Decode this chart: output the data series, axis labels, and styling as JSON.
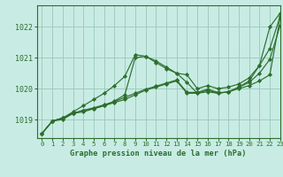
{
  "title": "Graphe pression niveau de la mer (hPa)",
  "background_color": "#c8ece4",
  "grid_color": "#a0ccbf",
  "line_color": "#2d6e2d",
  "xlim": [
    -0.5,
    23
  ],
  "ylim": [
    1018.4,
    1022.7
  ],
  "yticks": [
    1019,
    1020,
    1021,
    1022
  ],
  "xticks": [
    0,
    1,
    2,
    3,
    4,
    5,
    6,
    7,
    8,
    9,
    10,
    11,
    12,
    13,
    14,
    15,
    16,
    17,
    18,
    19,
    20,
    21,
    22,
    23
  ],
  "series": [
    [
      1018.55,
      1018.95,
      1019.0,
      1019.2,
      1019.25,
      1019.35,
      1019.45,
      1019.55,
      1019.65,
      1019.8,
      1019.95,
      1020.05,
      1020.15,
      1020.25,
      1019.85,
      1019.85,
      1019.95,
      1019.85,
      1019.9,
      1020.0,
      1020.1,
      1020.25,
      1020.45,
      1022.3
    ],
    [
      1018.55,
      1018.95,
      1019.05,
      1019.25,
      1019.45,
      1019.65,
      1019.85,
      1020.1,
      1020.4,
      1021.1,
      1021.05,
      1020.9,
      1020.7,
      1020.5,
      1020.2,
      1019.85,
      1019.9,
      1019.85,
      1019.9,
      1020.05,
      1020.25,
      1020.75,
      1022.0,
      1022.45
    ],
    [
      1018.55,
      1018.95,
      1019.05,
      1019.2,
      1019.3,
      1019.35,
      1019.45,
      1019.6,
      1019.8,
      1021.0,
      1021.05,
      1020.85,
      1020.65,
      1020.5,
      1020.45,
      1020.0,
      1020.1,
      1020.0,
      1020.05,
      1020.15,
      1020.35,
      1020.75,
      1021.3,
      1022.35
    ],
    [
      1018.55,
      1018.95,
      1019.05,
      1019.2,
      1019.3,
      1019.38,
      1019.48,
      1019.58,
      1019.72,
      1019.85,
      1019.98,
      1020.08,
      1020.18,
      1020.28,
      1019.88,
      1019.88,
      1019.98,
      1019.88,
      1019.88,
      1020.05,
      1020.2,
      1020.5,
      1020.95,
      1022.05
    ]
  ]
}
